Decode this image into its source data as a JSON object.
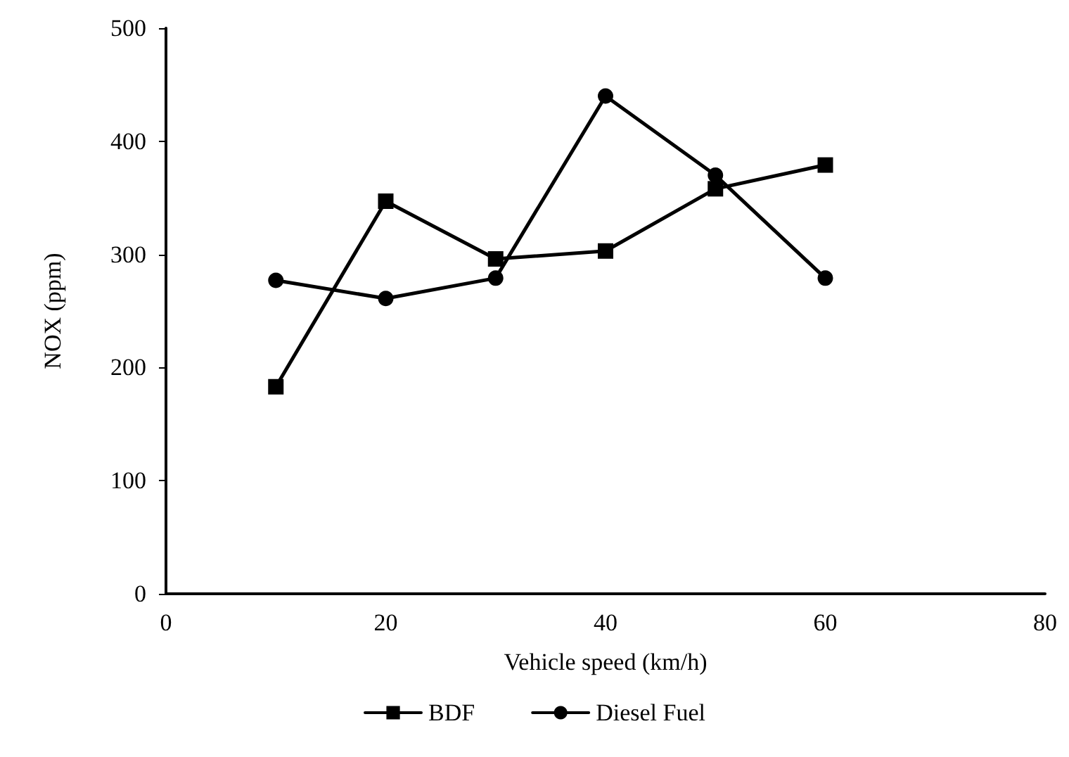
{
  "chart_data": {
    "type": "line",
    "xlabel": "Vehicle speed (km/h)",
    "ylabel": "NOX (ppm)",
    "x": [
      10,
      20,
      30,
      40,
      50,
      60
    ],
    "series": [
      {
        "name": "BDF",
        "color": "#000000",
        "marker": "square",
        "values": [
          183,
          347,
          296,
          303,
          358,
          379
        ]
      },
      {
        "name": "Diesel Fuel",
        "color": "#000000",
        "marker": "circle",
        "values": [
          277,
          261,
          279,
          440,
          370,
          279
        ]
      }
    ],
    "xlim": [
      0,
      80
    ],
    "xticks": [
      0,
      20,
      40,
      60,
      80
    ],
    "ylim": [
      0,
      500
    ],
    "yticks": [
      0,
      100,
      200,
      300,
      400,
      500
    ],
    "grid": false,
    "legend": "bottom",
    "line_style": "solid"
  }
}
